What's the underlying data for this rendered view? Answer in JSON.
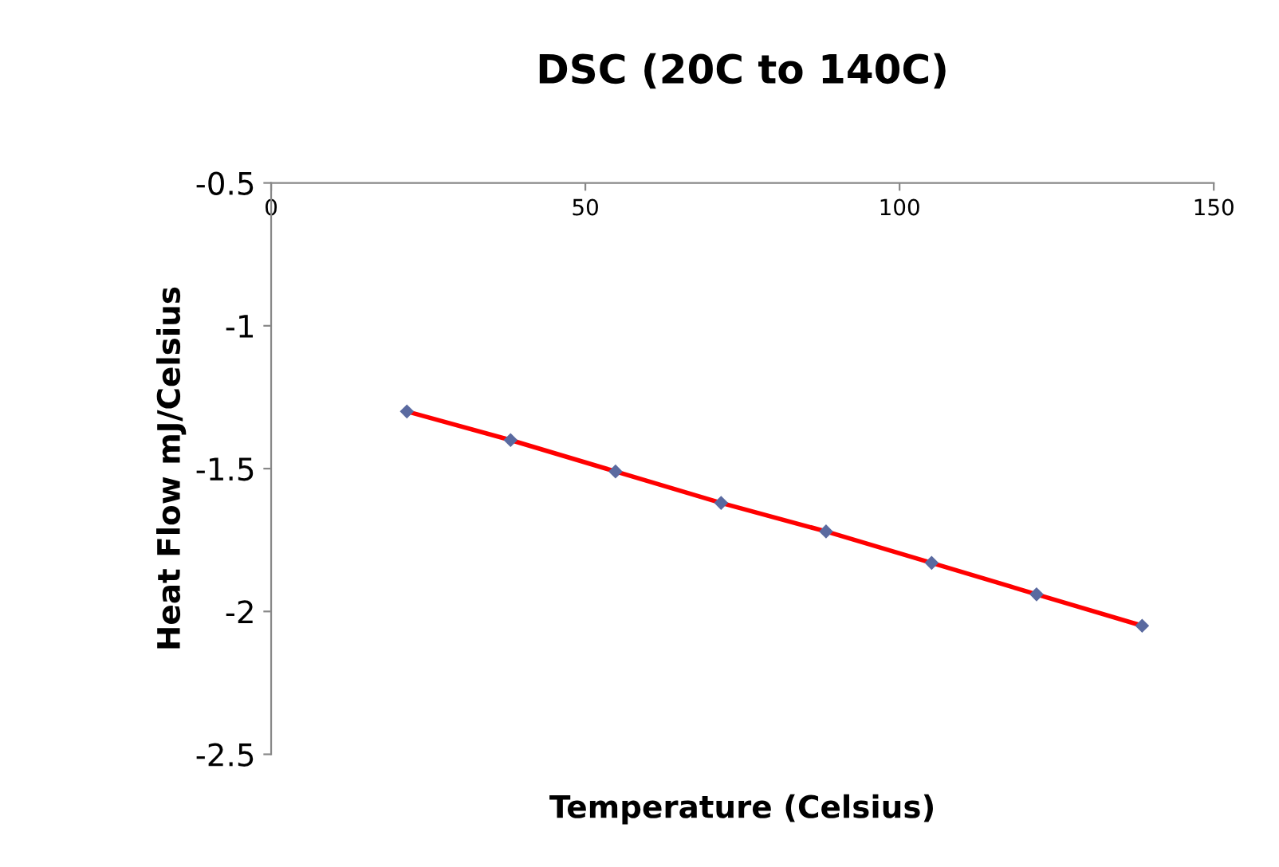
{
  "chart_data": {
    "type": "line",
    "title": "DSC (20C to 140C)",
    "xlabel": "Temperature (Celsius)",
    "ylabel": "Heat Flow mJ/Celsius",
    "xlim": [
      0,
      150
    ],
    "xticks": [
      0,
      50,
      100,
      150
    ],
    "ylim": [
      -2.5,
      -0.5
    ],
    "yticks": [
      -2.5,
      -2,
      -1.5,
      -1,
      -0.5
    ],
    "grid": false,
    "legend": false,
    "marker": "diamond",
    "line_style": "solid",
    "series": [
      {
        "color": "#ff0000",
        "x": [
          21.6,
          38.1,
          54.8,
          71.6,
          88.3,
          105.1,
          121.8,
          138.6
        ],
        "values": [
          -1.3,
          -1.4,
          -1.51,
          -1.62,
          -1.72,
          -1.83,
          -1.94,
          -2.05
        ]
      }
    ]
  }
}
